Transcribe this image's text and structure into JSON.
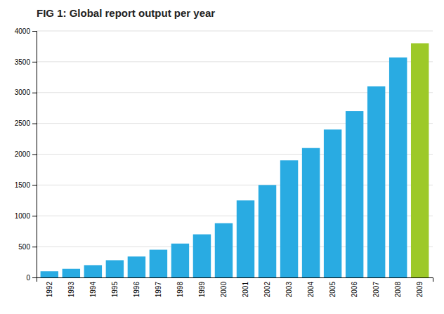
{
  "chart_data": {
    "type": "bar",
    "title": "FIG 1: Global report output per year",
    "categories": [
      "1992",
      "1993",
      "1994",
      "1995",
      "1996",
      "1997",
      "1998",
      "1999",
      "2000",
      "2001",
      "2002",
      "2003",
      "2004",
      "2005",
      "2006",
      "2007",
      "2008",
      "2009"
    ],
    "values": [
      100,
      140,
      200,
      280,
      340,
      450,
      550,
      700,
      880,
      1250,
      1500,
      1900,
      2100,
      2400,
      2700,
      3100,
      3570,
      3800
    ],
    "colors": [
      "#29abe2",
      "#29abe2",
      "#29abe2",
      "#29abe2",
      "#29abe2",
      "#29abe2",
      "#29abe2",
      "#29abe2",
      "#29abe2",
      "#29abe2",
      "#29abe2",
      "#29abe2",
      "#29abe2",
      "#29abe2",
      "#29abe2",
      "#29abe2",
      "#29abe2",
      "#9dc928"
    ],
    "ylim": [
      0,
      4000
    ],
    "yticks": [
      0,
      500,
      1000,
      1500,
      2000,
      2500,
      3000,
      3500,
      4000
    ],
    "grid": true
  }
}
